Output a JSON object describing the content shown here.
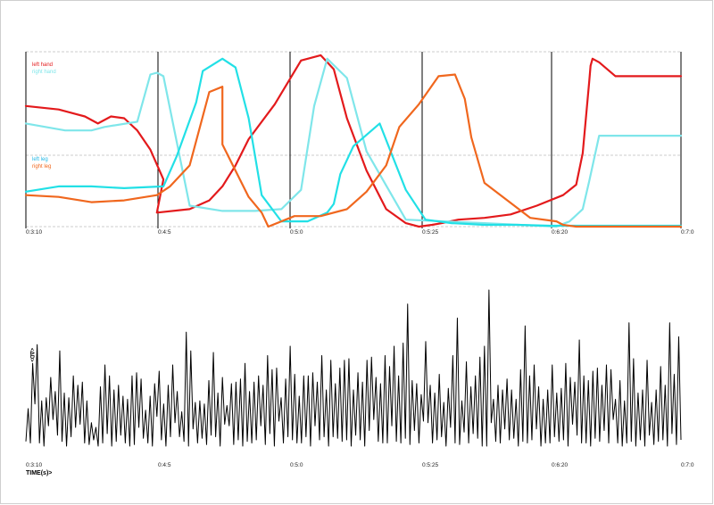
{
  "chart_data": [
    {
      "type": "line",
      "x_ticks": [
        "0:3:10",
        "0:4:5",
        "0:5:0",
        "0:5:25",
        "0:6:20",
        "0:7:0"
      ],
      "legend": [
        {
          "label": "left hand",
          "color": "#e31a1c"
        },
        {
          "label": "right hand",
          "color": "#7fe6ea"
        },
        {
          "label": "left leg",
          "color": "#22e0e6"
        },
        {
          "label": "right leg",
          "color": "#f0671e"
        }
      ],
      "grid": "dashed horizontal lines, solid vertical lines at x ticks",
      "ylim": [
        0,
        1
      ],
      "series": [
        {
          "name": "left hand",
          "color": "#e31a1c",
          "x": [
            0,
            0.05,
            0.09,
            0.11,
            0.13,
            0.15,
            0.17,
            0.19,
            0.21,
            0.2,
            0.25,
            0.28,
            0.3,
            0.32,
            0.34,
            0.38,
            0.42,
            0.45,
            0.47,
            0.49,
            0.52,
            0.55,
            0.58,
            0.6,
            0.62,
            0.635,
            0.66,
            0.7,
            0.74,
            0.78,
            0.82,
            0.84,
            0.85,
            0.86,
            0.862,
            0.865,
            0.875,
            0.9,
            0.95,
            1.0
          ],
          "y": [
            0.69,
            0.67,
            0.63,
            0.59,
            0.63,
            0.62,
            0.55,
            0.44,
            0.27,
            0.08,
            0.1,
            0.15,
            0.23,
            0.35,
            0.5,
            0.7,
            0.95,
            0.98,
            0.9,
            0.62,
            0.32,
            0.1,
            0.02,
            0.0,
            0.01,
            0.02,
            0.04,
            0.05,
            0.07,
            0.12,
            0.18,
            0.24,
            0.42,
            0.83,
            0.92,
            0.96,
            0.94,
            0.86,
            0.86,
            0.86
          ]
        },
        {
          "name": "right hand",
          "color": "#7fe6ea",
          "x": [
            0,
            0.06,
            0.1,
            0.12,
            0.17,
            0.19,
            0.2,
            0.21,
            0.25,
            0.3,
            0.35,
            0.39,
            0.42,
            0.44,
            0.46,
            0.49,
            0.52,
            0.58,
            0.7,
            0.81,
            0.83,
            0.85,
            0.86,
            0.875,
            0.9,
            0.95,
            1.0
          ],
          "y": [
            0.59,
            0.55,
            0.55,
            0.57,
            0.6,
            0.87,
            0.88,
            0.86,
            0.12,
            0.09,
            0.09,
            0.1,
            0.21,
            0.69,
            0.96,
            0.85,
            0.43,
            0.04,
            0.02,
            0.0,
            0.03,
            0.1,
            0.26,
            0.52,
            0.52,
            0.52,
            0.52
          ]
        },
        {
          "name": "left leg",
          "color": "#22e0e6",
          "x": [
            0,
            0.05,
            0.1,
            0.15,
            0.21,
            0.23,
            0.26,
            0.27,
            0.3,
            0.32,
            0.34,
            0.36,
            0.39,
            0.43,
            0.46,
            0.47,
            0.48,
            0.5,
            0.54,
            0.56,
            0.58,
            0.61,
            0.65,
            0.7,
            0.75,
            0.8,
            0.85,
            0.9,
            0.95,
            1.0
          ],
          "y": [
            0.2,
            0.23,
            0.23,
            0.22,
            0.23,
            0.4,
            0.71,
            0.89,
            0.96,
            0.91,
            0.62,
            0.18,
            0.03,
            0.03,
            0.08,
            0.13,
            0.3,
            0.46,
            0.59,
            0.4,
            0.21,
            0.04,
            0.02,
            0.01,
            0.01,
            0.005,
            0.005,
            0.005,
            0.005,
            0.005
          ]
        },
        {
          "name": "right leg",
          "color": "#f0671e",
          "x": [
            0,
            0.05,
            0.1,
            0.15,
            0.2,
            0.22,
            0.25,
            0.28,
            0.3,
            0.3,
            0.34,
            0.36,
            0.37,
            0.41,
            0.42,
            0.45,
            0.49,
            0.52,
            0.55,
            0.57,
            0.6,
            0.63,
            0.655,
            0.67,
            0.68,
            0.7,
            0.77,
            0.81,
            0.82,
            0.84,
            0.86,
            0.9,
            0.95,
            1.0
          ],
          "y": [
            0.18,
            0.17,
            0.14,
            0.15,
            0.18,
            0.23,
            0.35,
            0.77,
            0.8,
            0.47,
            0.17,
            0.08,
            0.0,
            0.06,
            0.06,
            0.06,
            0.1,
            0.2,
            0.35,
            0.57,
            0.7,
            0.86,
            0.87,
            0.73,
            0.51,
            0.25,
            0.05,
            0.03,
            0.01,
            0.0,
            0.0,
            0.0,
            0.0,
            0.0
          ]
        }
      ]
    },
    {
      "type": "line",
      "ylabel": "<ΔD>",
      "xlabel": "TIME(s)>",
      "x_ticks": [
        "0:3:10",
        "0:4:5",
        "0:5:0",
        "0:5:25",
        "0:6:20",
        "0:7:0"
      ],
      "ylim": [
        0,
        1
      ],
      "series": [
        {
          "name": "",
          "color": "#000000",
          "y": [
            0.03,
            0.24,
            0.02,
            0.53,
            0.27,
            0.65,
            0.02,
            0.29,
            0.0,
            0.31,
            0.13,
            0.44,
            0.17,
            0.35,
            0.07,
            0.61,
            0.03,
            0.34,
            0.0,
            0.31,
            0.06,
            0.45,
            0.12,
            0.39,
            0.14,
            0.41,
            0.02,
            0.29,
            0.01,
            0.15,
            0.04,
            0.12,
            0.0,
            0.38,
            0.02,
            0.52,
            0.08,
            0.45,
            0.0,
            0.36,
            0.03,
            0.39,
            0.07,
            0.32,
            0.02,
            0.3,
            0.0,
            0.45,
            0.01,
            0.47,
            0.12,
            0.43,
            0.05,
            0.23,
            0.02,
            0.32,
            0.0,
            0.4,
            0.19,
            0.48,
            0.04,
            0.27,
            0.0,
            0.39,
            0.06,
            0.52,
            0.15,
            0.35,
            0.06,
            0.22,
            0.03,
            0.73,
            0.0,
            0.61,
            0.11,
            0.28,
            0.02,
            0.29,
            0.05,
            0.27,
            0.01,
            0.42,
            0.07,
            0.6,
            0.06,
            0.34,
            0.0,
            0.44,
            0.14,
            0.26,
            0.13,
            0.4,
            0.01,
            0.41,
            0.04,
            0.43,
            0.0,
            0.53,
            0.03,
            0.35,
            0.02,
            0.41,
            0.04,
            0.45,
            0.13,
            0.39,
            0.01,
            0.58,
            0.08,
            0.49,
            0.0,
            0.5,
            0.16,
            0.31,
            0.02,
            0.43,
            0.06,
            0.64,
            0.04,
            0.46,
            0.02,
            0.32,
            0.02,
            0.45,
            0.06,
            0.45,
            0.0,
            0.47,
            0.13,
            0.41,
            0.04,
            0.58,
            0.06,
            0.36,
            0.0,
            0.55,
            0.06,
            0.4,
            0.05,
            0.5,
            0.03,
            0.55,
            0.04,
            0.56,
            0.0,
            0.36,
            0.07,
            0.47,
            0.04,
            0.41,
            0.0,
            0.55,
            0.1,
            0.57,
            0.17,
            0.44,
            0.03,
            0.4,
            0.02,
            0.58,
            0.02,
            0.51,
            0.13,
            0.64,
            0.03,
            0.45,
            0.02,
            0.66,
            0.05,
            0.91,
            0.01,
            0.42,
            0.1,
            0.4,
            0.02,
            0.33,
            0.16,
            0.67,
            0.15,
            0.39,
            0.02,
            0.34,
            0.04,
            0.46,
            0.06,
            0.28,
            0.0,
            0.37,
            0.12,
            0.58,
            0.02,
            0.82,
            0.01,
            0.29,
            0.09,
            0.54,
            0.02,
            0.38,
            0.08,
            0.45,
            0.05,
            0.57,
            0.0,
            0.64,
            0.0,
            1.0,
            0.15,
            0.3,
            0.03,
            0.39,
            0.02,
            0.36,
            0.11,
            0.43,
            0.04,
            0.36,
            0.05,
            0.3,
            0.0,
            0.49,
            0.03,
            0.77,
            0.02,
            0.45,
            0.04,
            0.52,
            0.11,
            0.38,
            0.0,
            0.3,
            0.02,
            0.36,
            0.02,
            0.52,
            0.06,
            0.34,
            0.03,
            0.37,
            0.04,
            0.53,
            0.0,
            0.44,
            0.14,
            0.41,
            0.07,
            0.68,
            0.02,
            0.45,
            0.02,
            0.42,
            0.0,
            0.48,
            0.05,
            0.5,
            0.03,
            0.39,
            0.1,
            0.52,
            0.02,
            0.49,
            0.17,
            0.3,
            0.02,
            0.42,
            0.0,
            0.29,
            0.02,
            0.79,
            0.03,
            0.56,
            0.0,
            0.34,
            0.04,
            0.36,
            0.0,
            0.55,
            0.07,
            0.28,
            0.01,
            0.36,
            0.03,
            0.51,
            0.04,
            0.39,
            0.0,
            0.79,
            0.08,
            0.46,
            0.01,
            0.7,
            0.04
          ]
        }
      ]
    }
  ]
}
